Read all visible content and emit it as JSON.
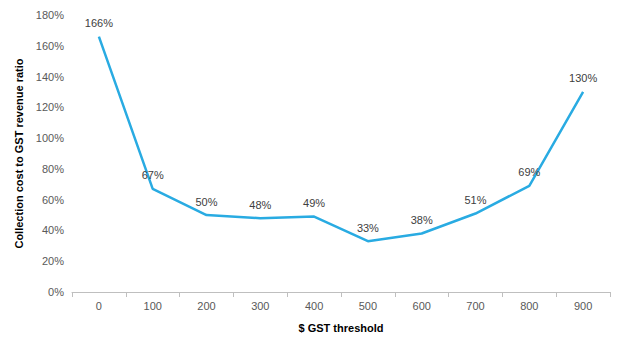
{
  "chart_data": {
    "type": "line",
    "x_label": "$ GST threshold",
    "y_label": "Collection cost to GST revenue ratio",
    "categories": [
      "0",
      "100",
      "200",
      "300",
      "400",
      "500",
      "600",
      "700",
      "800",
      "900"
    ],
    "values": [
      166,
      67,
      50,
      48,
      49,
      33,
      38,
      51,
      69,
      130
    ],
    "value_labels": [
      "166%",
      "67%",
      "50%",
      "48%",
      "49%",
      "33%",
      "38%",
      "51%",
      "69%",
      "130%"
    ],
    "color": "#29abe2",
    "ylim": [
      0,
      180
    ],
    "yticks": [
      {
        "value": 0,
        "label": "0%"
      },
      {
        "value": 20,
        "label": "20%"
      },
      {
        "value": 40,
        "label": "40%"
      },
      {
        "value": 60,
        "label": "60%"
      },
      {
        "value": 80,
        "label": "80%"
      },
      {
        "value": 100,
        "label": "100%"
      },
      {
        "value": 120,
        "label": "120%"
      },
      {
        "value": 140,
        "label": "140%"
      },
      {
        "value": 160,
        "label": "160%"
      },
      {
        "value": 180,
        "label": "180%"
      }
    ],
    "grid": false,
    "data_labels": true,
    "marker": "none"
  }
}
